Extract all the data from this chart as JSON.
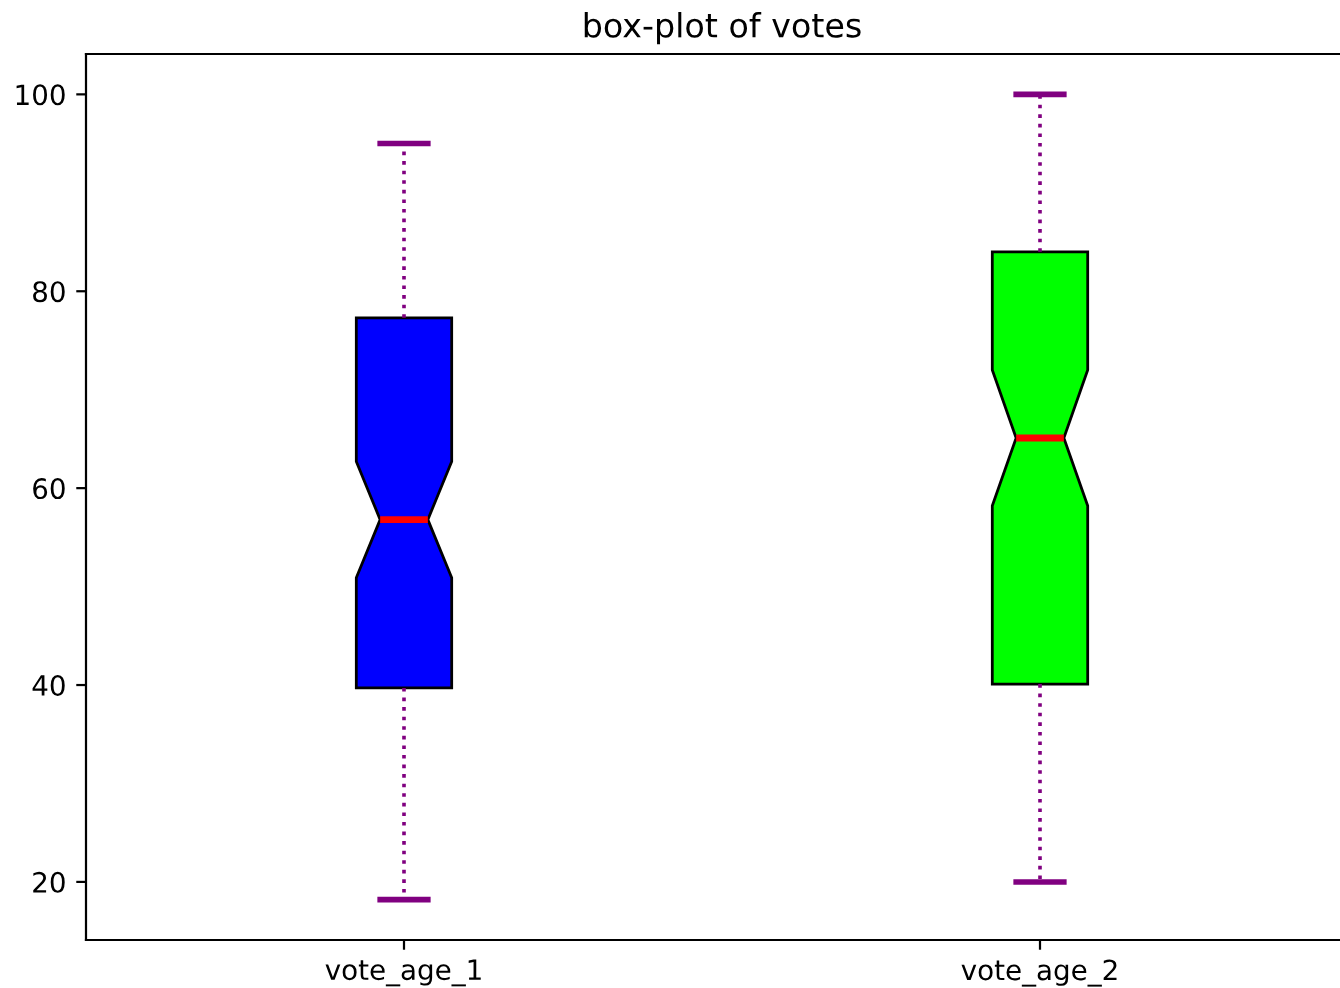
{
  "chart_data": {
    "type": "box",
    "title": "box-plot of votes",
    "categories": [
      "vote_age_1",
      "vote_age_2"
    ],
    "colors": [
      "#0000ff",
      "#00ff00"
    ],
    "boxes": [
      {
        "low": 18.2,
        "q1": 39.7,
        "median": 56.8,
        "q3": 77.3,
        "high": 95
      },
      {
        "low": 20,
        "q1": 40.1,
        "median": 65.1,
        "q3": 84,
        "high": 100
      }
    ],
    "ylim": [
      14.1,
      104.1
    ],
    "yticks": [
      20,
      40,
      60,
      80,
      100
    ],
    "grid": false,
    "line_style": "dotted"
  }
}
